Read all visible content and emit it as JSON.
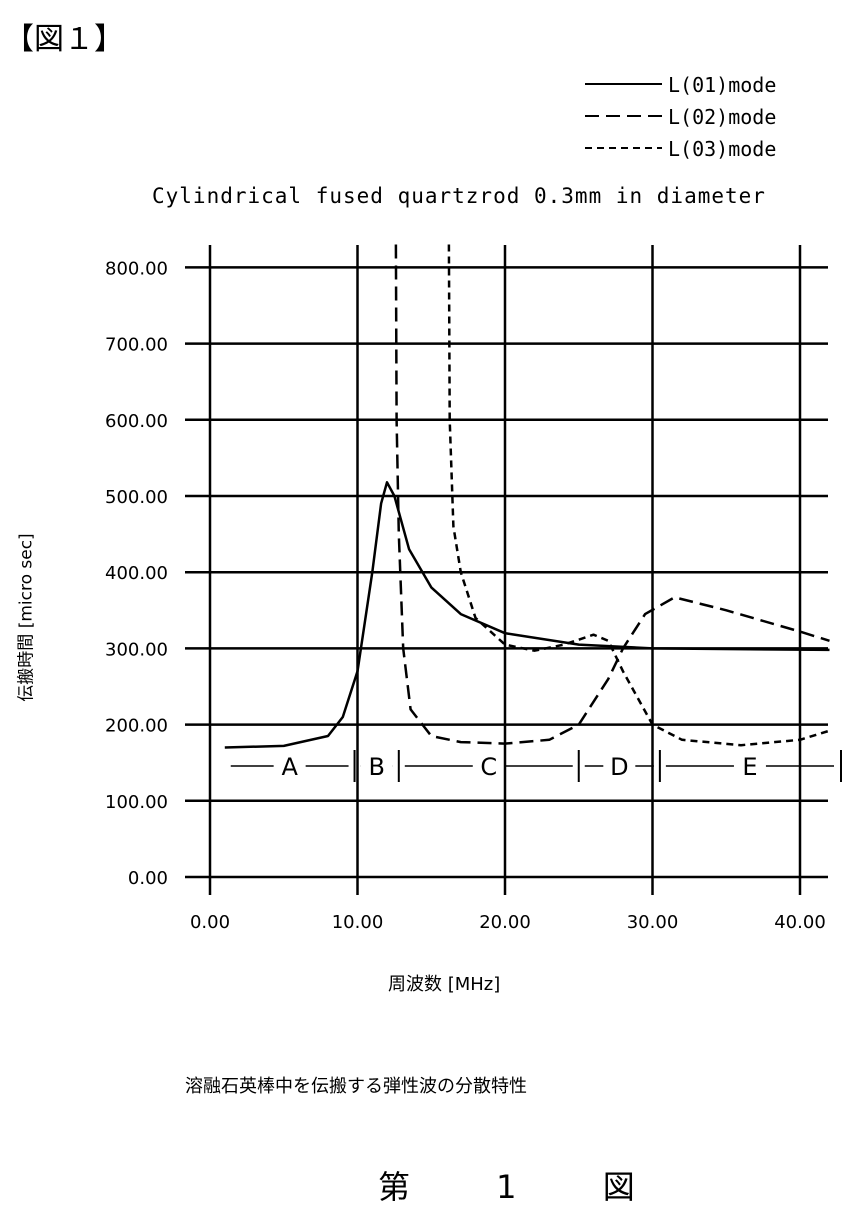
{
  "figure_label": "【図１】",
  "caption": "溶融石英棒中を伝搬する弾性波の分散特性",
  "figure_number": "第 1 図",
  "chart_data": {
    "type": "line",
    "title": "Cylindrical fused quartzrod 0.3mm in diameter",
    "xlabel": "周波数 [MHz]",
    "ylabel": "伝搬時間 [micro sec]",
    "xlim": [
      0,
      43
    ],
    "ylim": [
      0,
      800
    ],
    "xticks": [
      0,
      10,
      20,
      30,
      40
    ],
    "xtick_labels": [
      "0.00",
      "10.00",
      "20.00",
      "30.00",
      "40.00"
    ],
    "yticks": [
      0,
      100,
      200,
      300,
      400,
      500,
      600,
      700,
      800
    ],
    "ytick_labels": [
      "0.00",
      "100.00",
      "200.00",
      "300.00",
      "400.00",
      "500.00",
      "600.00",
      "700.00",
      "800.00"
    ],
    "grid": true,
    "legend_position": "top-right",
    "series": [
      {
        "name": "L(01)mode",
        "style": "solid",
        "x": [
          1,
          5,
          8,
          9,
          10,
          11,
          11.6,
          12,
          12.5,
          13.5,
          15,
          17,
          20,
          25,
          30,
          42
        ],
        "y": [
          170,
          172,
          185,
          210,
          270,
          400,
          490,
          518,
          500,
          430,
          380,
          345,
          320,
          305,
          300,
          298
        ]
      },
      {
        "name": "L(02)mode",
        "style": "long-dash",
        "x": [
          12.6,
          12.65,
          12.8,
          13.1,
          13.6,
          15,
          17,
          20,
          23,
          25,
          27,
          28,
          29.5,
          31.5,
          35,
          40,
          42
        ],
        "y": [
          830,
          600,
          450,
          300,
          220,
          185,
          177,
          175,
          180,
          200,
          260,
          300,
          345,
          367,
          350,
          322,
          310
        ]
      },
      {
        "name": "L(03)mode",
        "style": "short-dash",
        "x": [
          16.2,
          16.25,
          16.5,
          17,
          18,
          20,
          22,
          24,
          26,
          27,
          28,
          30,
          32,
          36,
          40,
          42
        ],
        "y": [
          830,
          600,
          460,
          400,
          340,
          305,
          297,
          305,
          318,
          310,
          270,
          200,
          180,
          173,
          180,
          192
        ]
      }
    ],
    "regions": [
      {
        "label": "A",
        "from": 1,
        "to": 9.8
      },
      {
        "label": "B",
        "from": 9.8,
        "to": 12.8
      },
      {
        "label": "C",
        "from": 12.8,
        "to": 25
      },
      {
        "label": "D",
        "from": 25,
        "to": 30.5
      },
      {
        "label": "E",
        "from": 30.5,
        "to": 43
      }
    ]
  }
}
